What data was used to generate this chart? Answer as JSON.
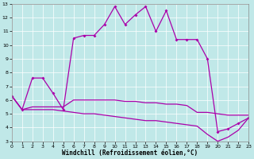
{
  "xlabel": "Windchill (Refroidissement éolien,°C)",
  "background_color": "#c0e8e8",
  "line_color": "#aa00aa",
  "grid_color": "#ffffff",
  "xlim": [
    0,
    23
  ],
  "ylim": [
    3,
    13
  ],
  "xticks": [
    0,
    1,
    2,
    3,
    4,
    5,
    6,
    7,
    8,
    9,
    10,
    11,
    12,
    13,
    14,
    15,
    16,
    17,
    18,
    19,
    20,
    21,
    22,
    23
  ],
  "yticks": [
    3,
    4,
    5,
    6,
    7,
    8,
    9,
    10,
    11,
    12,
    13
  ],
  "series1_x": [
    0,
    1,
    2,
    3,
    4,
    5,
    6,
    7,
    8,
    9,
    10,
    11,
    12,
    13,
    14,
    15,
    16,
    17,
    18,
    19,
    20,
    21,
    22,
    23
  ],
  "series1_y": [
    6.3,
    5.3,
    7.6,
    7.6,
    6.5,
    5.3,
    10.5,
    10.7,
    10.7,
    11.5,
    12.8,
    11.5,
    12.2,
    12.8,
    11.0,
    12.5,
    10.4,
    10.4,
    10.4,
    9.0,
    3.7,
    3.9,
    4.3,
    4.7
  ],
  "series2_x": [
    0,
    1,
    2,
    3,
    4,
    5,
    6,
    7,
    8,
    9,
    10,
    11,
    12,
    13,
    14,
    15,
    16,
    17,
    18,
    19,
    20,
    21,
    22,
    23
  ],
  "series2_y": [
    6.3,
    5.3,
    5.5,
    5.5,
    5.5,
    5.5,
    6.0,
    6.0,
    6.0,
    6.0,
    6.0,
    5.9,
    5.9,
    5.8,
    5.8,
    5.7,
    5.7,
    5.6,
    5.1,
    5.1,
    5.0,
    4.9,
    4.9,
    4.9
  ],
  "series3_x": [
    0,
    1,
    2,
    3,
    4,
    5,
    6,
    7,
    8,
    9,
    10,
    11,
    12,
    13,
    14,
    15,
    16,
    17,
    18,
    19,
    20,
    21,
    22,
    23
  ],
  "series3_y": [
    6.3,
    5.3,
    5.3,
    5.3,
    5.3,
    5.2,
    5.1,
    5.0,
    5.0,
    4.9,
    4.8,
    4.7,
    4.6,
    4.5,
    4.5,
    4.4,
    4.3,
    4.2,
    4.1,
    3.5,
    3.0,
    3.3,
    3.8,
    4.7
  ]
}
